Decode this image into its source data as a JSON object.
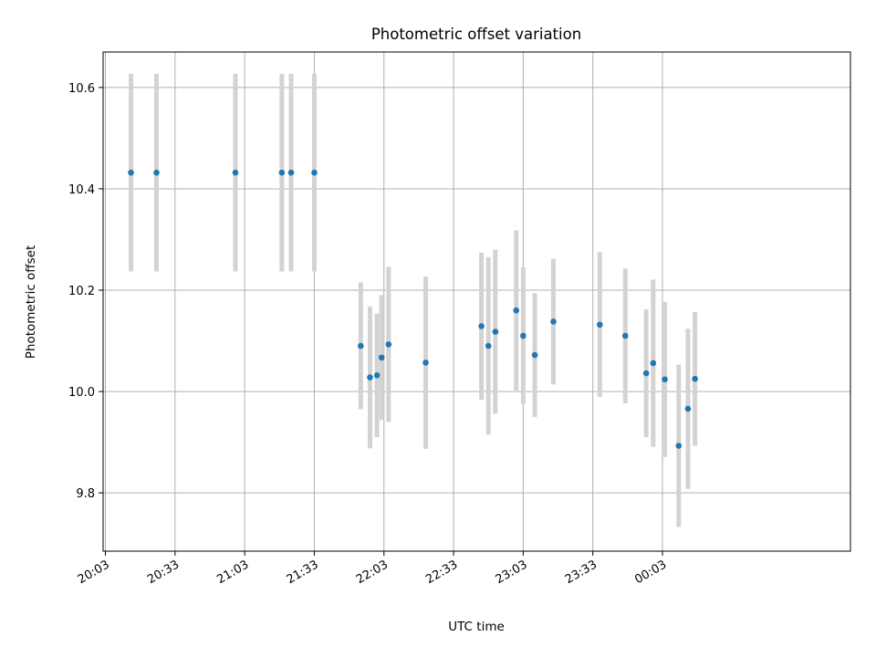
{
  "chart_data": {
    "type": "scatter",
    "title": "Photometric offset variation",
    "xlabel": "UTC time",
    "ylabel": "Photometric offset",
    "x_axis_kind": "time",
    "xlim": [
      "20:02",
      "01:24"
    ],
    "ylim": [
      9.685,
      10.67
    ],
    "x_ticks": [
      "20:03",
      "20:33",
      "21:03",
      "21:33",
      "22:03",
      "22:33",
      "23:03",
      "23:33",
      "00:03"
    ],
    "y_ticks": [
      "9.8",
      "10.0",
      "10.2",
      "10.4",
      "10.6"
    ],
    "grid": true,
    "legend": "none",
    "point_color": "#1f77b4",
    "errorbar_color": "#d3d3d3",
    "points": [
      {
        "time": "20:14",
        "y": 10.432,
        "err": 0.195
      },
      {
        "time": "20:25",
        "y": 10.432,
        "err": 0.195
      },
      {
        "time": "20:59",
        "y": 10.432,
        "err": 0.195
      },
      {
        "time": "21:19",
        "y": 10.432,
        "err": 0.195
      },
      {
        "time": "21:23",
        "y": 10.432,
        "err": 0.195
      },
      {
        "time": "21:33",
        "y": 10.432,
        "err": 0.195
      },
      {
        "time": "21:53",
        "y": 10.09,
        "err": 0.125
      },
      {
        "time": "21:57",
        "y": 10.028,
        "err": 0.14
      },
      {
        "time": "22:00",
        "y": 10.032,
        "err": 0.122
      },
      {
        "time": "22:02",
        "y": 10.067,
        "err": 0.123
      },
      {
        "time": "22:05",
        "y": 10.093,
        "err": 0.153
      },
      {
        "time": "22:21",
        "y": 10.057,
        "err": 0.17
      },
      {
        "time": "22:45",
        "y": 10.129,
        "err": 0.145
      },
      {
        "time": "22:48",
        "y": 10.09,
        "err": 0.175
      },
      {
        "time": "22:51",
        "y": 10.118,
        "err": 0.162
      },
      {
        "time": "23:00",
        "y": 10.16,
        "err": 0.158
      },
      {
        "time": "23:03",
        "y": 10.11,
        "err": 0.135
      },
      {
        "time": "23:08",
        "y": 10.072,
        "err": 0.122
      },
      {
        "time": "23:16",
        "y": 10.138,
        "err": 0.124
      },
      {
        "time": "23:36",
        "y": 10.132,
        "err": 0.143
      },
      {
        "time": "23:47",
        "y": 10.11,
        "err": 0.133
      },
      {
        "time": "23:56",
        "y": 10.036,
        "err": 0.126
      },
      {
        "time": "23:59",
        "y": 10.056,
        "err": 0.165
      },
      {
        "time": "00:04",
        "y": 10.024,
        "err": 0.153
      },
      {
        "time": "00:10",
        "y": 9.893,
        "err": 0.16
      },
      {
        "time": "00:14",
        "y": 9.966,
        "err": 0.158
      },
      {
        "time": "00:17",
        "y": 10.025,
        "err": 0.132
      }
    ]
  }
}
